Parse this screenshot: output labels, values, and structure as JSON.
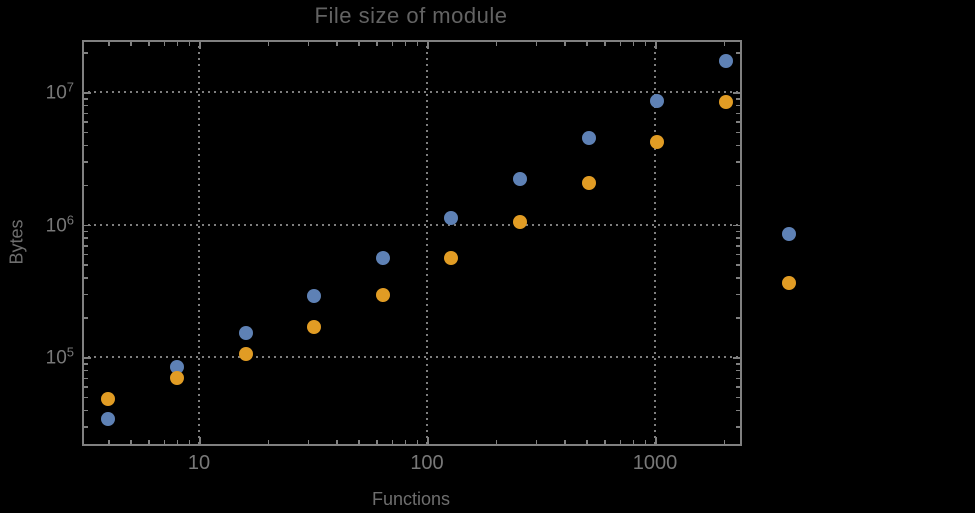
{
  "chart_data": {
    "type": "scatter",
    "title": "File size of module",
    "xlabel": "Functions",
    "ylabel": "Bytes",
    "x_scale": "log",
    "y_scale": "log",
    "xlim": [
      3.07,
      2360
    ],
    "ylim": [
      22000,
      24600000
    ],
    "grid": "dotted",
    "x_ticks": [
      {
        "value": 10,
        "label": "10"
      },
      {
        "value": 100,
        "label": "100"
      },
      {
        "value": 1000,
        "label": "1000"
      }
    ],
    "y_ticks": [
      {
        "value": 100000,
        "base": "10",
        "exp": "5"
      },
      {
        "value": 1000000,
        "base": "10",
        "exp": "6"
      },
      {
        "value": 10000000,
        "base": "10",
        "exp": "7"
      }
    ],
    "x": [
      4,
      8,
      16,
      32,
      64,
      128,
      256,
      512,
      1024,
      2048
    ],
    "series": [
      {
        "name": "series-1-blue",
        "color": "#5E81B5",
        "values": [
          34000,
          84000,
          152000,
          290000,
          558000,
          1110000,
          2220000,
          4460000,
          8510000,
          17100000
        ]
      },
      {
        "name": "series-2-orange",
        "color": "#E19C24",
        "values": [
          48000,
          69500,
          105000,
          168000,
          294000,
          558000,
          1040000,
          2070000,
          4160000,
          8340000
        ]
      }
    ],
    "legend": {
      "position": "right-of-frame",
      "labels_visible": false,
      "markers": [
        {
          "name": "series-1-blue",
          "color": "#5E81B5"
        },
        {
          "name": "series-2-orange",
          "color": "#E19C24"
        }
      ]
    }
  },
  "colors": {
    "background": "#000000",
    "frame": "#808080",
    "gridline": "#7e7e7e",
    "title_text": "#636363",
    "tick_label_text": "#787878",
    "axis_label_text": "#6e6e6e"
  }
}
